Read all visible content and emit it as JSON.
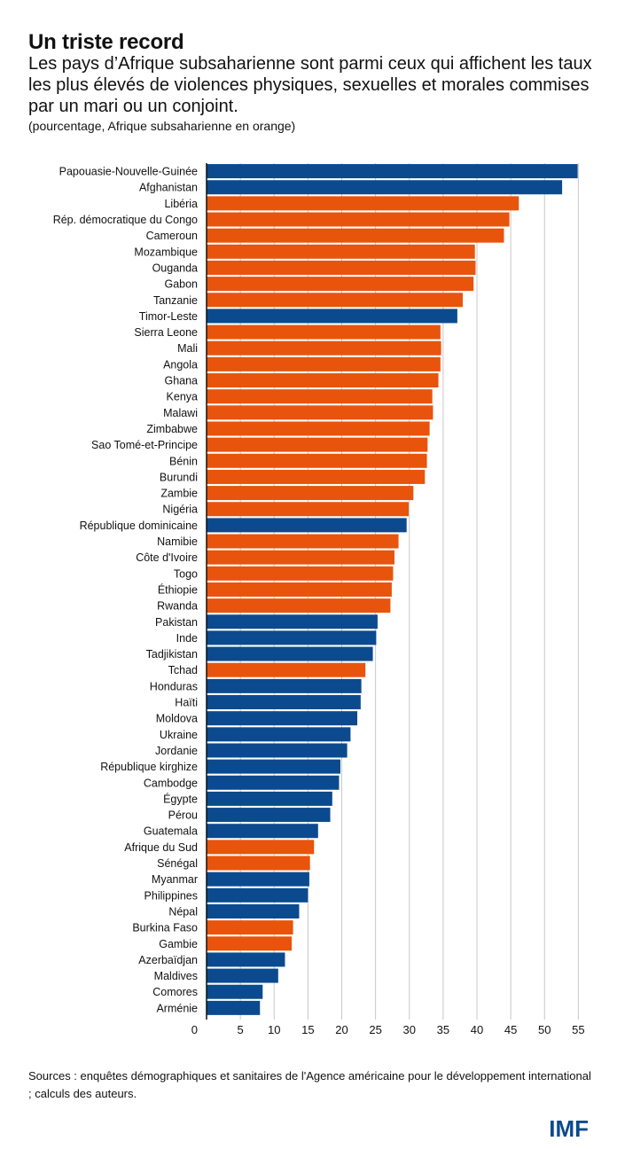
{
  "header": {
    "title": "Un triste record",
    "subtitle": "Les pays d’Afrique subsaharienne sont parmi ceux qui affichent les taux les plus élevés de violences physiques, sexuelles et morales commises par un mari ou un conjoint.",
    "note": "(pourcentage, Afrique subsaharienne en orange)"
  },
  "footer": {
    "sources": "Sources : enquêtes démographiques et sanitaires de l'Agence américaine pour le développement international ; calculs des auteurs.",
    "logo": "IMF"
  },
  "colors": {
    "ssa": "#e8540c",
    "other": "#0b4a8f",
    "grid": "#c8c8c8",
    "axis": "#111111"
  },
  "chart_data": {
    "type": "bar",
    "orientation": "horizontal",
    "xlim": [
      0,
      56
    ],
    "xticks": [
      0,
      5,
      10,
      15,
      20,
      25,
      30,
      35,
      40,
      45,
      50,
      55
    ],
    "grid": true,
    "categories": [
      "Papouasie-Nouvelle-Guinée",
      "Afghanistan",
      "Libéria",
      "Rép. démocratique du Congo",
      "Cameroun",
      "Mozambique",
      "Ouganda",
      "Gabon",
      "Tanzanie",
      "Timor-Leste",
      "Sierra Leone",
      "Mali",
      "Angola",
      "Ghana",
      "Kenya",
      "Malawi",
      "Zimbabwe",
      "Sao Tomé-et-Principe",
      "Bénin",
      "Burundi",
      "Zambie",
      "Nigéria",
      "République dominicaine",
      "Namibie",
      "Côte d'Ivoire",
      "Togo",
      "Éthiopie",
      "Rwanda",
      "Pakistan",
      "Inde",
      "Tadjikistan",
      "Tchad",
      "Honduras",
      "Haïti",
      "Moldova",
      "Ukraine",
      "Jordanie",
      "République kirghize",
      "Cambodge",
      "Égypte",
      "Pérou",
      "Guatemala",
      "Afrique du Sud",
      "Sénégal",
      "Myanmar",
      "Philippines",
      "Népal",
      "Burkina Faso",
      "Gambie",
      "Azerbaïdjan",
      "Maldives",
      "Comores",
      "Arménie"
    ],
    "values": [
      54.9,
      52.6,
      46.2,
      44.8,
      44.0,
      39.7,
      39.8,
      39.5,
      37.9,
      37.1,
      34.6,
      34.7,
      34.6,
      34.3,
      33.4,
      33.5,
      33.0,
      32.7,
      32.6,
      32.3,
      30.6,
      29.9,
      29.6,
      28.4,
      27.8,
      27.6,
      27.4,
      27.2,
      25.3,
      25.1,
      24.6,
      23.5,
      22.9,
      22.8,
      22.3,
      21.3,
      20.8,
      19.8,
      19.6,
      18.6,
      18.3,
      16.5,
      15.9,
      15.3,
      15.2,
      15.0,
      13.7,
      12.8,
      12.6,
      11.6,
      10.6,
      8.3,
      7.9
    ],
    "ssa": [
      false,
      false,
      true,
      true,
      true,
      true,
      true,
      true,
      true,
      false,
      true,
      true,
      true,
      true,
      true,
      true,
      true,
      true,
      true,
      true,
      true,
      true,
      false,
      true,
      true,
      true,
      true,
      true,
      false,
      false,
      false,
      true,
      false,
      false,
      false,
      false,
      false,
      false,
      false,
      false,
      false,
      false,
      true,
      true,
      false,
      false,
      false,
      true,
      true,
      false,
      false,
      false,
      false
    ]
  }
}
